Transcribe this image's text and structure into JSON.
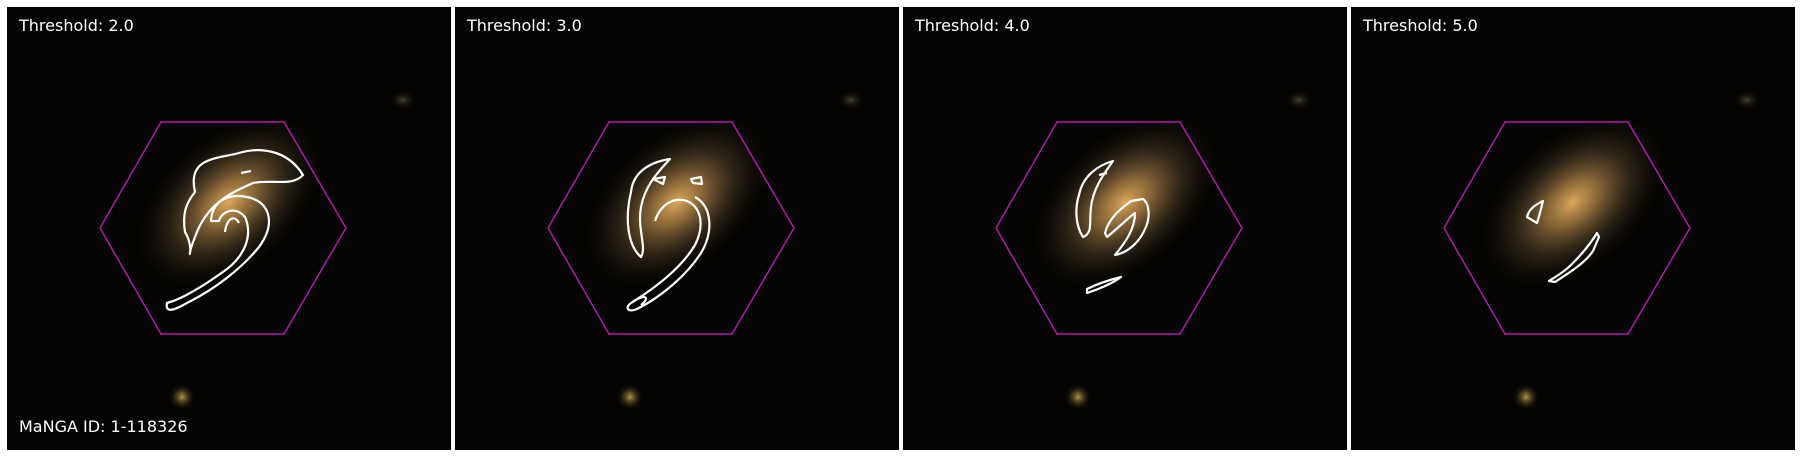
{
  "manga_id": "MaNGA ID: 1-118326",
  "panels": [
    {
      "threshold_label": "Threshold: 2.0",
      "threshold": 2.0
    },
    {
      "threshold_label": "Threshold: 3.0",
      "threshold": 3.0
    },
    {
      "threshold_label": "Threshold: 4.0",
      "threshold": 4.0
    },
    {
      "threshold_label": "Threshold: 5.0",
      "threshold": 5.0
    }
  ],
  "colors": {
    "background": "#000000",
    "hexagon": "#b01ab0",
    "contour": "#ffffff",
    "galaxy_core": "#d9a24a"
  }
}
